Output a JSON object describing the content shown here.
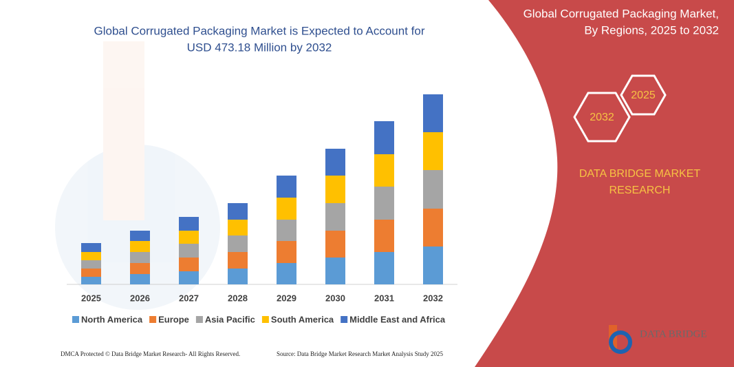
{
  "chart_data": {
    "type": "stacked_bar",
    "title": [
      "Global Corrugated Packaging Market is Expected to Account for",
      "USD 473.18 Million by 2032"
    ],
    "categories": [
      "2025",
      "2026",
      "2027",
      "2028",
      "2029",
      "2030",
      "2031",
      "2032"
    ],
    "series": [
      {
        "name": "North America",
        "color": "#5b9bd5",
        "values": [
          11,
          15,
          19,
          23,
          31,
          39,
          47,
          55
        ]
      },
      {
        "name": "Europe",
        "color": "#ed7d31",
        "values": [
          12,
          16,
          20,
          24,
          32,
          39,
          47,
          55
        ]
      },
      {
        "name": "Asia Pacific",
        "color": "#a5a5a5",
        "values": [
          12,
          16,
          20,
          24,
          31,
          40,
          48,
          56
        ]
      },
      {
        "name": "South America",
        "color": "#ffc000",
        "values": [
          12,
          16,
          19,
          23,
          32,
          40,
          47,
          55
        ]
      },
      {
        "name": "Middle East and Africa",
        "color": "#4472c4",
        "values": [
          13,
          15,
          20,
          24,
          32,
          39,
          48,
          55
        ]
      }
    ]
  },
  "panel": {
    "title": [
      "Global Corrugated Packaging Market,",
      "By Regions, 2025 to 2032"
    ],
    "hexagons": [
      "2025",
      "2032"
    ],
    "brand": [
      "DATA BRIDGE MARKET",
      "RESEARCH"
    ]
  },
  "logo": "DATA BRIDGE",
  "footer": {
    "left": "DMCA Protected © Data Bridge Market Research- All Rights Reserved.",
    "right": "Source: Data Bridge Market Research Market Analysis Study 2025"
  }
}
